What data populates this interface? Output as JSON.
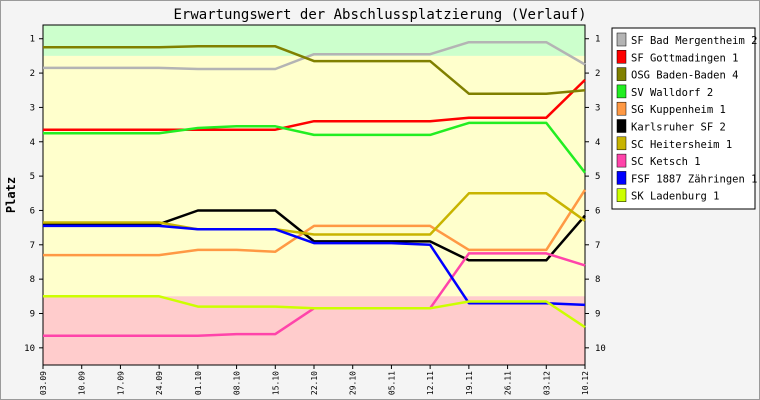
{
  "chart_data": {
    "type": "line",
    "title": "Erwartungswert der Abschlussplatzierung (Verlauf)",
    "ylabel": "Platz",
    "xlabel": "",
    "x": [
      "03.09",
      "10.09",
      "17.09",
      "24.09",
      "01.10",
      "08.10",
      "15.10",
      "22.10",
      "29.10",
      "05.11",
      "12.11",
      "19.11",
      "26.11",
      "03.12",
      "10.12"
    ],
    "y_ticks": [
      1,
      2,
      3,
      4,
      5,
      6,
      7,
      8,
      9,
      10
    ],
    "ylim": [
      0.6,
      10.5
    ],
    "y_inverted": true,
    "grid": false,
    "legend_position": "right",
    "bands": [
      {
        "from": 0.6,
        "to": 1.5,
        "color": "#ccffcc"
      },
      {
        "from": 1.5,
        "to": 8.5,
        "color": "#ffffcc"
      },
      {
        "from": 8.5,
        "to": 10.5,
        "color": "#ffcccc"
      }
    ],
    "series": [
      {
        "name": "SF Bad Mergentheim 2",
        "color": "#b4b4b4",
        "values": [
          1.85,
          1.85,
          1.85,
          1.85,
          1.88,
          1.88,
          1.88,
          1.45,
          1.45,
          1.45,
          1.45,
          1.1,
          1.1,
          1.1,
          1.75
        ]
      },
      {
        "name": "SF Gottmadingen 1",
        "color": "#ff0000",
        "values": [
          3.65,
          3.65,
          3.65,
          3.65,
          3.65,
          3.65,
          3.65,
          3.4,
          3.4,
          3.4,
          3.4,
          3.3,
          3.3,
          3.3,
          2.2
        ]
      },
      {
        "name": "OSG Baden-Baden 4",
        "color": "#808000",
        "values": [
          1.25,
          1.25,
          1.25,
          1.25,
          1.22,
          1.22,
          1.22,
          1.65,
          1.65,
          1.65,
          1.65,
          2.6,
          2.6,
          2.6,
          2.5
        ]
      },
      {
        "name": "SV Walldorf 2",
        "color": "#22ee22",
        "values": [
          3.75,
          3.75,
          3.75,
          3.75,
          3.6,
          3.55,
          3.55,
          3.8,
          3.8,
          3.8,
          3.8,
          3.45,
          3.45,
          3.45,
          4.9
        ]
      },
      {
        "name": "SG Kuppenheim 1",
        "color": "#ff9944",
        "values": [
          7.3,
          7.3,
          7.3,
          7.3,
          7.15,
          7.15,
          7.2,
          6.45,
          6.45,
          6.45,
          6.45,
          7.15,
          7.15,
          7.15,
          5.4
        ]
      },
      {
        "name": "Karlsruher SF 2",
        "color": "#000000",
        "values": [
          6.4,
          6.4,
          6.4,
          6.4,
          6.0,
          6.0,
          6.0,
          6.9,
          6.9,
          6.9,
          6.9,
          7.45,
          7.45,
          7.45,
          6.15
        ]
      },
      {
        "name": "SC Heitersheim 1",
        "color": "#c8b400",
        "values": [
          6.35,
          6.35,
          6.35,
          6.35,
          6.55,
          6.55,
          6.55,
          6.7,
          6.7,
          6.7,
          6.7,
          5.5,
          5.5,
          5.5,
          6.3
        ]
      },
      {
        "name": "SC Ketsch 1",
        "color": "#ff44aa",
        "values": [
          9.65,
          9.65,
          9.65,
          9.65,
          9.65,
          9.6,
          9.6,
          8.85,
          8.85,
          8.85,
          8.85,
          7.25,
          7.25,
          7.25,
          7.6
        ]
      },
      {
        "name": "FSF 1887 Zähringen 1",
        "color": "#0000ff",
        "values": [
          6.45,
          6.45,
          6.45,
          6.45,
          6.55,
          6.55,
          6.55,
          6.95,
          6.95,
          6.95,
          7.0,
          8.7,
          8.7,
          8.7,
          8.75
        ]
      },
      {
        "name": "SK Ladenburg 1",
        "color": "#ccff00",
        "values": [
          8.5,
          8.5,
          8.5,
          8.5,
          8.8,
          8.8,
          8.8,
          8.85,
          8.85,
          8.85,
          8.85,
          8.65,
          8.65,
          8.65,
          9.4
        ]
      }
    ]
  }
}
